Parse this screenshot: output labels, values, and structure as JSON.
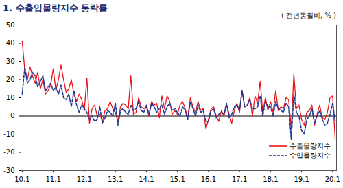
{
  "chart_data": {
    "type": "line",
    "title": "1. 수출입물량지수 등락률",
    "subtitle": "( 전년동월비, % )",
    "categories": [
      "10.1",
      null,
      null,
      null,
      null,
      null,
      null,
      null,
      null,
      null,
      null,
      null,
      "11.1",
      null,
      null,
      null,
      null,
      null,
      null,
      null,
      null,
      null,
      null,
      null,
      "12.1",
      null,
      null,
      null,
      null,
      null,
      null,
      null,
      null,
      null,
      null,
      null,
      "13.1",
      null,
      null,
      null,
      null,
      null,
      null,
      null,
      null,
      null,
      null,
      null,
      "14.1",
      null,
      null,
      null,
      null,
      null,
      null,
      null,
      null,
      null,
      null,
      null,
      "15.1",
      null,
      null,
      null,
      null,
      null,
      null,
      null,
      null,
      null,
      null,
      null,
      "16.1",
      null,
      null,
      null,
      null,
      null,
      null,
      null,
      null,
      null,
      null,
      null,
      "17.1",
      null,
      null,
      null,
      null,
      null,
      null,
      null,
      null,
      null,
      null,
      null,
      "18.1",
      null,
      null,
      null,
      null,
      null,
      null,
      null,
      null,
      null,
      null,
      null,
      "19.1",
      null,
      null,
      null,
      null,
      null,
      null,
      null,
      null,
      null,
      null,
      null,
      "20.1",
      null
    ],
    "series": [
      {
        "name": "수출물량지수",
        "color": "#e8141c",
        "line_style": "solid",
        "values": [
          41,
          25,
          20,
          27,
          22,
          18,
          24,
          15,
          20,
          12,
          14,
          17,
          26,
          14,
          20,
          28,
          20,
          13,
          15,
          20,
          12,
          8,
          12,
          9,
          3,
          21,
          -4,
          4,
          6,
          0,
          1,
          -3,
          3,
          4,
          8,
          4,
          2,
          -3,
          5,
          7,
          6,
          4,
          22,
          1,
          2,
          10,
          5,
          4,
          5,
          0,
          8,
          6,
          7,
          -1,
          11,
          4,
          11,
          8,
          1,
          3,
          1,
          6,
          8,
          4,
          -1,
          10,
          5,
          2,
          8,
          3,
          4,
          -7,
          -2,
          4,
          5,
          0,
          -3,
          3,
          0,
          6,
          1,
          -4,
          3,
          7,
          2,
          14,
          5,
          6,
          10,
          0,
          11,
          7,
          19,
          2,
          10,
          3,
          8,
          2,
          14,
          3,
          5,
          4,
          10,
          9,
          -7,
          23,
          4,
          6,
          -2,
          -5,
          2,
          3,
          6,
          -5,
          1,
          6,
          -1,
          -2,
          2,
          10,
          11,
          -13
        ]
      },
      {
        "name": "수입물량지수",
        "color": "#1f3a93",
        "line_style": "dashed",
        "values": [
          12,
          27,
          18,
          20,
          24,
          22,
          16,
          19,
          22,
          14,
          16,
          18,
          14,
          16,
          12,
          17,
          10,
          9,
          12,
          5,
          14,
          6,
          2,
          6,
          4,
          2,
          -2,
          0,
          -3,
          -2,
          5,
          -4,
          -1,
          3,
          2,
          0,
          7,
          -5,
          3,
          4,
          2,
          1,
          6,
          3,
          4,
          8,
          3,
          2,
          6,
          1,
          7,
          5,
          2,
          4,
          6,
          1,
          5,
          7,
          3,
          4,
          2,
          0,
          5,
          3,
          -2,
          8,
          4,
          0,
          6,
          2,
          3,
          -3,
          -3,
          3,
          4,
          -1,
          1,
          2,
          1,
          7,
          -1,
          1,
          5,
          6,
          3,
          14,
          5,
          6,
          9,
          4,
          4,
          5,
          11,
          0,
          8,
          5,
          5,
          0,
          8,
          4,
          3,
          2,
          7,
          5,
          -13,
          12,
          2,
          0,
          -8,
          -10,
          -2,
          0,
          4,
          -4,
          0,
          3,
          -2,
          -5,
          -4,
          1,
          7,
          -3
        ]
      }
    ],
    "ylim": [
      -30,
      50
    ],
    "yticks": [
      -30,
      -20,
      -10,
      0,
      10,
      20,
      30,
      40,
      50
    ],
    "grid": false,
    "legend": "bottom-right"
  }
}
